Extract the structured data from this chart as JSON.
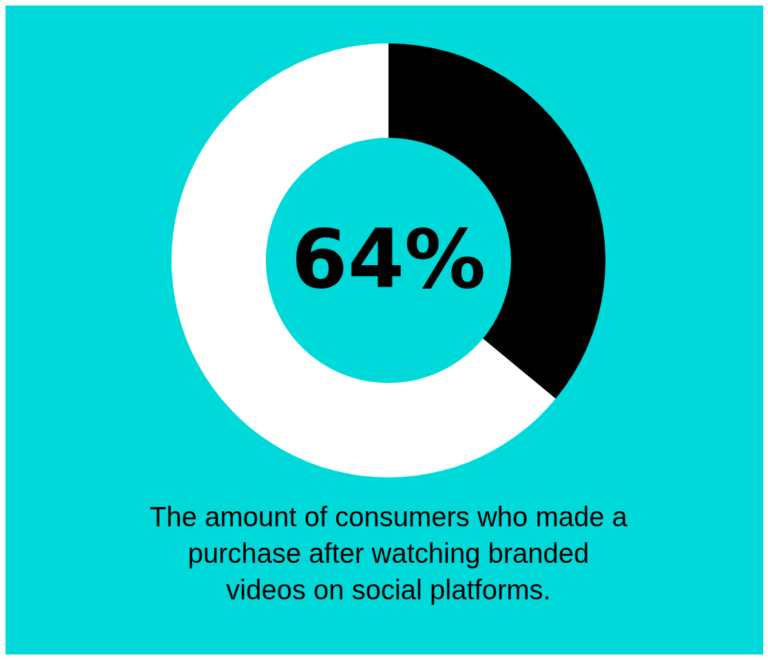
{
  "chart_data": {
    "type": "donut",
    "categories": [
      null,
      null
    ],
    "values": [
      36,
      64
    ],
    "colors": [
      "#000000",
      "#ffffff"
    ],
    "annotations": [
      "64%",
      "The amount of consumers who made a purchase after watching branded videos on social platforms."
    ]
  }
}
